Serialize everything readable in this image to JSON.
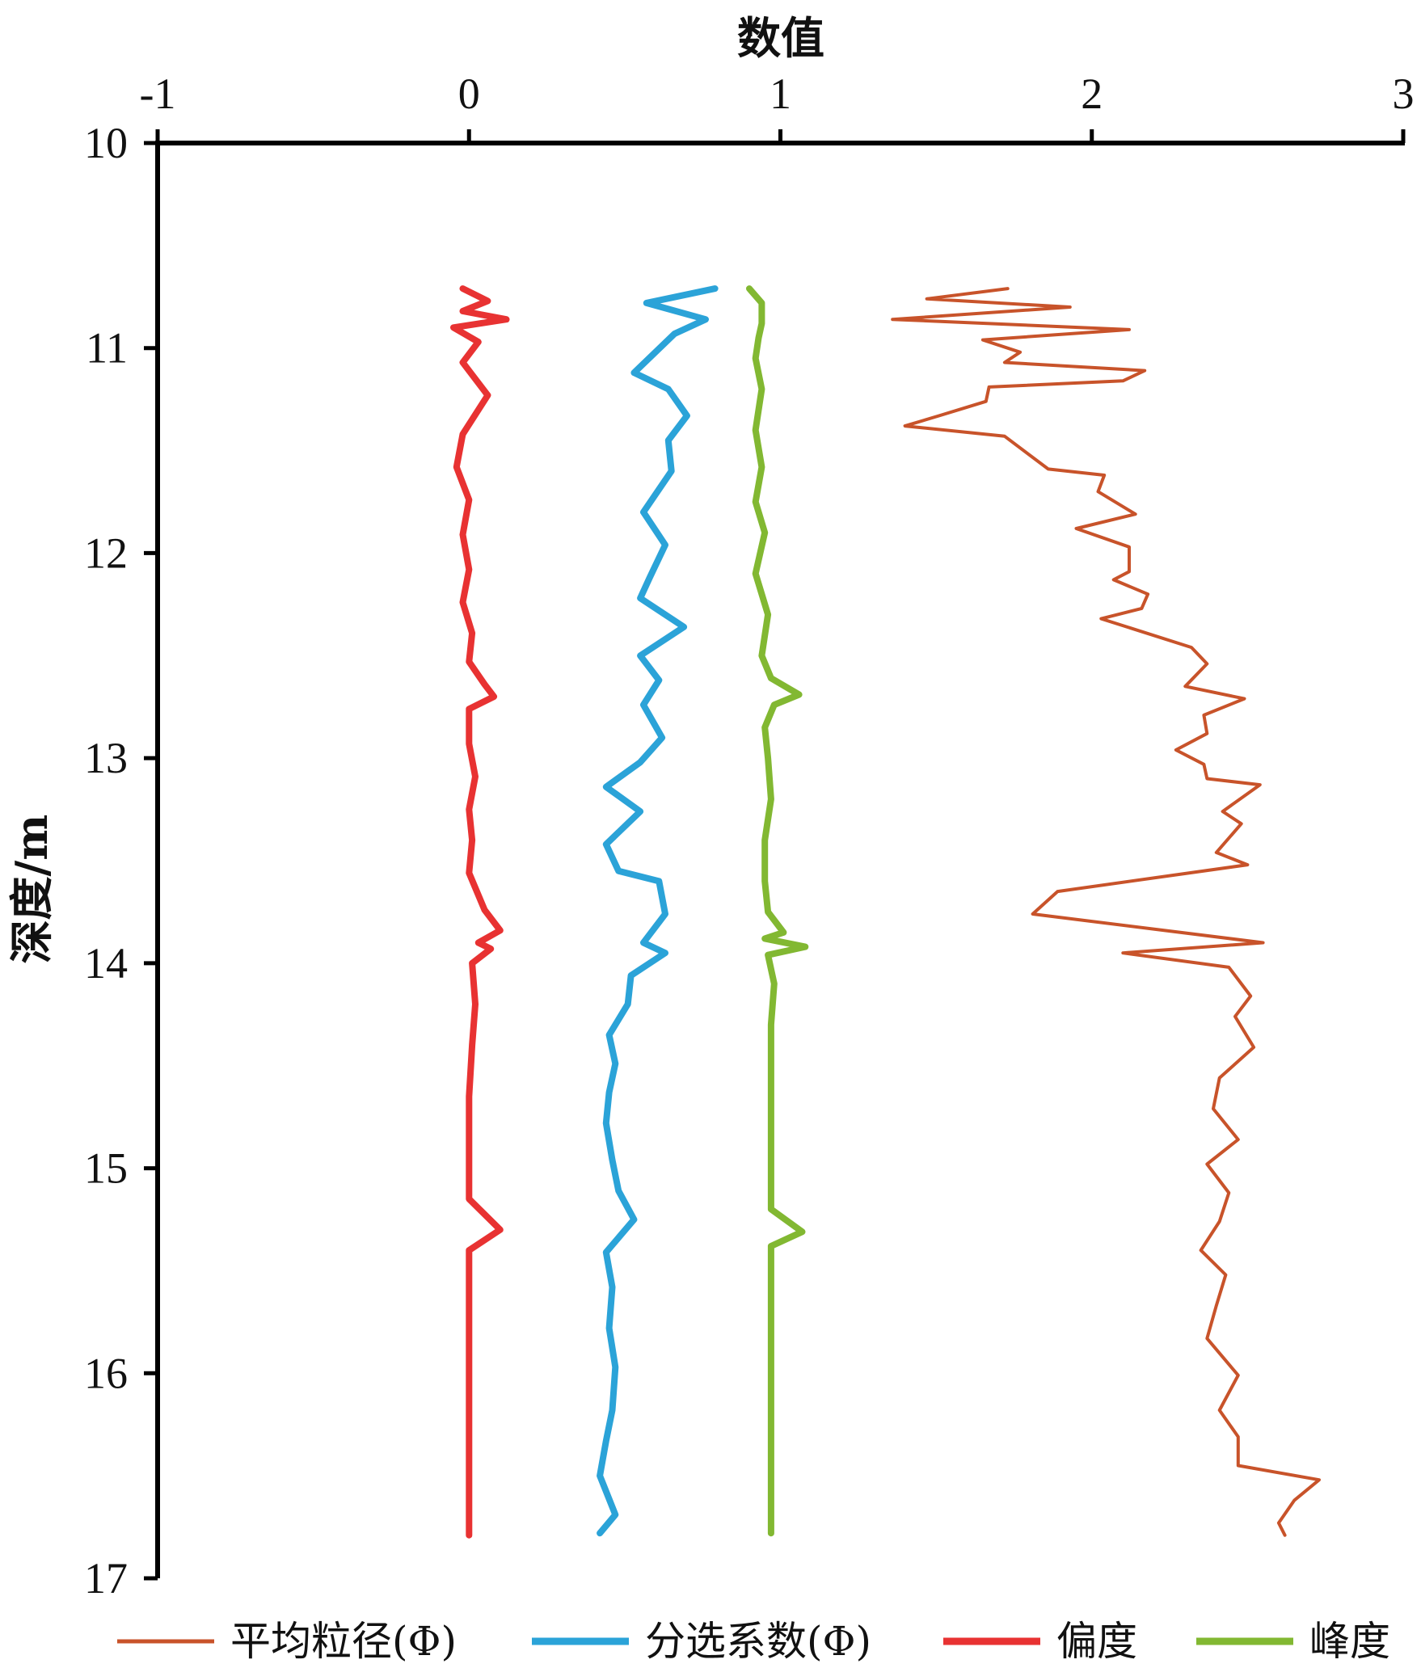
{
  "chart_data": {
    "type": "line",
    "xlabel": "数值",
    "ylabel": "深度/m",
    "xlim": [
      -1,
      3
    ],
    "ylim": [
      10,
      17
    ],
    "x_ticks": [
      "-1",
      "0",
      "1",
      "2",
      "3"
    ],
    "y_ticks": [
      "10",
      "11",
      "12",
      "13",
      "14",
      "15",
      "16",
      "17"
    ],
    "x_axis_position": "top",
    "y_axis_inverted": true,
    "grid": false,
    "legend_position": "bottom",
    "series": [
      {
        "name": "平均粒径(Φ)",
        "color": "#c8532a",
        "points": [
          [
            1.73,
            10.71
          ],
          [
            1.47,
            10.76
          ],
          [
            1.93,
            10.8
          ],
          [
            1.36,
            10.86
          ],
          [
            2.12,
            10.91
          ],
          [
            1.65,
            10.96
          ],
          [
            1.77,
            11.02
          ],
          [
            1.72,
            11.07
          ],
          [
            2.17,
            11.11
          ],
          [
            2.1,
            11.16
          ],
          [
            1.67,
            11.19
          ],
          [
            1.66,
            11.26
          ],
          [
            1.51,
            11.33
          ],
          [
            1.4,
            11.38
          ],
          [
            1.72,
            11.43
          ],
          [
            1.86,
            11.59
          ],
          [
            2.04,
            11.62
          ],
          [
            2.02,
            11.7
          ],
          [
            2.14,
            11.81
          ],
          [
            1.95,
            11.88
          ],
          [
            2.12,
            11.97
          ],
          [
            2.12,
            12.09
          ],
          [
            2.07,
            12.13
          ],
          [
            2.18,
            12.2
          ],
          [
            2.16,
            12.27
          ],
          [
            2.03,
            12.32
          ],
          [
            2.32,
            12.46
          ],
          [
            2.37,
            12.54
          ],
          [
            2.3,
            12.65
          ],
          [
            2.49,
            12.71
          ],
          [
            2.36,
            12.79
          ],
          [
            2.37,
            12.88
          ],
          [
            2.27,
            12.96
          ],
          [
            2.36,
            13.03
          ],
          [
            2.37,
            13.1
          ],
          [
            2.54,
            13.13
          ],
          [
            2.42,
            13.26
          ],
          [
            2.48,
            13.32
          ],
          [
            2.4,
            13.46
          ],
          [
            2.5,
            13.52
          ],
          [
            1.89,
            13.65
          ],
          [
            1.81,
            13.76
          ],
          [
            2.55,
            13.9
          ],
          [
            2.1,
            13.95
          ],
          [
            2.44,
            14.02
          ],
          [
            2.51,
            14.16
          ],
          [
            2.46,
            14.26
          ],
          [
            2.52,
            14.41
          ],
          [
            2.41,
            14.56
          ],
          [
            2.39,
            14.71
          ],
          [
            2.47,
            14.86
          ],
          [
            2.37,
            14.98
          ],
          [
            2.44,
            15.12
          ],
          [
            2.41,
            15.26
          ],
          [
            2.35,
            15.4
          ],
          [
            2.43,
            15.52
          ],
          [
            2.4,
            15.67
          ],
          [
            2.37,
            15.83
          ],
          [
            2.47,
            16.01
          ],
          [
            2.41,
            16.18
          ],
          [
            2.47,
            16.31
          ],
          [
            2.47,
            16.45
          ],
          [
            2.73,
            16.52
          ],
          [
            2.65,
            16.62
          ],
          [
            2.6,
            16.73
          ],
          [
            2.62,
            16.79
          ]
        ]
      },
      {
        "name": "分选系数(Φ)",
        "color": "#2ba3d8",
        "points": [
          [
            0.79,
            10.71
          ],
          [
            0.57,
            10.78
          ],
          [
            0.76,
            10.86
          ],
          [
            0.66,
            10.93
          ],
          [
            0.53,
            11.12
          ],
          [
            0.64,
            11.2
          ],
          [
            0.7,
            11.33
          ],
          [
            0.64,
            11.45
          ],
          [
            0.65,
            11.6
          ],
          [
            0.56,
            11.8
          ],
          [
            0.63,
            11.96
          ],
          [
            0.58,
            12.12
          ],
          [
            0.55,
            12.22
          ],
          [
            0.69,
            12.36
          ],
          [
            0.55,
            12.5
          ],
          [
            0.61,
            12.62
          ],
          [
            0.56,
            12.74
          ],
          [
            0.62,
            12.9
          ],
          [
            0.55,
            13.02
          ],
          [
            0.44,
            13.14
          ],
          [
            0.55,
            13.26
          ],
          [
            0.44,
            13.42
          ],
          [
            0.48,
            13.55
          ],
          [
            0.61,
            13.6
          ],
          [
            0.63,
            13.76
          ],
          [
            0.56,
            13.9
          ],
          [
            0.63,
            13.95
          ],
          [
            0.52,
            14.06
          ],
          [
            0.51,
            14.2
          ],
          [
            0.45,
            14.35
          ],
          [
            0.47,
            14.49
          ],
          [
            0.45,
            14.63
          ],
          [
            0.44,
            14.78
          ],
          [
            0.46,
            14.96
          ],
          [
            0.48,
            15.11
          ],
          [
            0.53,
            15.25
          ],
          [
            0.44,
            15.41
          ],
          [
            0.46,
            15.58
          ],
          [
            0.45,
            15.78
          ],
          [
            0.47,
            15.97
          ],
          [
            0.46,
            16.18
          ],
          [
            0.44,
            16.33
          ],
          [
            0.42,
            16.5
          ],
          [
            0.47,
            16.69
          ],
          [
            0.42,
            16.78
          ]
        ]
      },
      {
        "name": "偏度",
        "color": "#e83232",
        "points": [
          [
            -0.02,
            10.71
          ],
          [
            0.06,
            10.77
          ],
          [
            -0.02,
            10.82
          ],
          [
            0.12,
            10.86
          ],
          [
            -0.05,
            10.9
          ],
          [
            0.03,
            10.97
          ],
          [
            -0.02,
            11.07
          ],
          [
            0.06,
            11.23
          ],
          [
            -0.02,
            11.42
          ],
          [
            -0.04,
            11.58
          ],
          [
            0.0,
            11.74
          ],
          [
            -0.02,
            11.91
          ],
          [
            0.0,
            12.08
          ],
          [
            -0.02,
            12.24
          ],
          [
            0.01,
            12.39
          ],
          [
            0.0,
            12.53
          ],
          [
            0.05,
            12.64
          ],
          [
            0.08,
            12.7
          ],
          [
            0.0,
            12.76
          ],
          [
            0.0,
            12.93
          ],
          [
            0.02,
            13.09
          ],
          [
            0.0,
            13.25
          ],
          [
            0.01,
            13.4
          ],
          [
            0.0,
            13.56
          ],
          [
            0.05,
            13.74
          ],
          [
            0.1,
            13.84
          ],
          [
            0.03,
            13.9
          ],
          [
            0.07,
            13.93
          ],
          [
            0.01,
            14.0
          ],
          [
            0.02,
            14.2
          ],
          [
            0.01,
            14.4
          ],
          [
            0.0,
            14.65
          ],
          [
            0.0,
            14.9
          ],
          [
            0.0,
            15.15
          ],
          [
            0.1,
            15.3
          ],
          [
            0.0,
            15.4
          ],
          [
            0.0,
            15.6
          ],
          [
            0.0,
            15.8
          ],
          [
            0.0,
            16.0
          ],
          [
            0.0,
            16.2
          ],
          [
            0.0,
            16.4
          ],
          [
            0.0,
            16.6
          ],
          [
            0.0,
            16.79
          ]
        ]
      },
      {
        "name": "峰度",
        "color": "#82b832",
        "points": [
          [
            0.9,
            10.71
          ],
          [
            0.94,
            10.78
          ],
          [
            0.94,
            10.88
          ],
          [
            0.93,
            10.95
          ],
          [
            0.92,
            11.05
          ],
          [
            0.94,
            11.2
          ],
          [
            0.92,
            11.4
          ],
          [
            0.94,
            11.58
          ],
          [
            0.92,
            11.75
          ],
          [
            0.95,
            11.9
          ],
          [
            0.92,
            12.1
          ],
          [
            0.96,
            12.3
          ],
          [
            0.94,
            12.5
          ],
          [
            0.97,
            12.61
          ],
          [
            1.06,
            12.69
          ],
          [
            0.98,
            12.74
          ],
          [
            0.95,
            12.85
          ],
          [
            0.96,
            13.0
          ],
          [
            0.97,
            13.2
          ],
          [
            0.95,
            13.4
          ],
          [
            0.95,
            13.6
          ],
          [
            0.96,
            13.75
          ],
          [
            1.01,
            13.85
          ],
          [
            0.95,
            13.88
          ],
          [
            1.08,
            13.92
          ],
          [
            0.96,
            13.96
          ],
          [
            0.98,
            14.1
          ],
          [
            0.97,
            14.3
          ],
          [
            0.97,
            14.6
          ],
          [
            0.97,
            14.95
          ],
          [
            0.97,
            15.2
          ],
          [
            1.07,
            15.31
          ],
          [
            0.97,
            15.38
          ],
          [
            0.97,
            15.6
          ],
          [
            0.97,
            15.9
          ],
          [
            0.97,
            16.2
          ],
          [
            0.97,
            16.5
          ],
          [
            0.97,
            16.78
          ]
        ]
      }
    ]
  }
}
